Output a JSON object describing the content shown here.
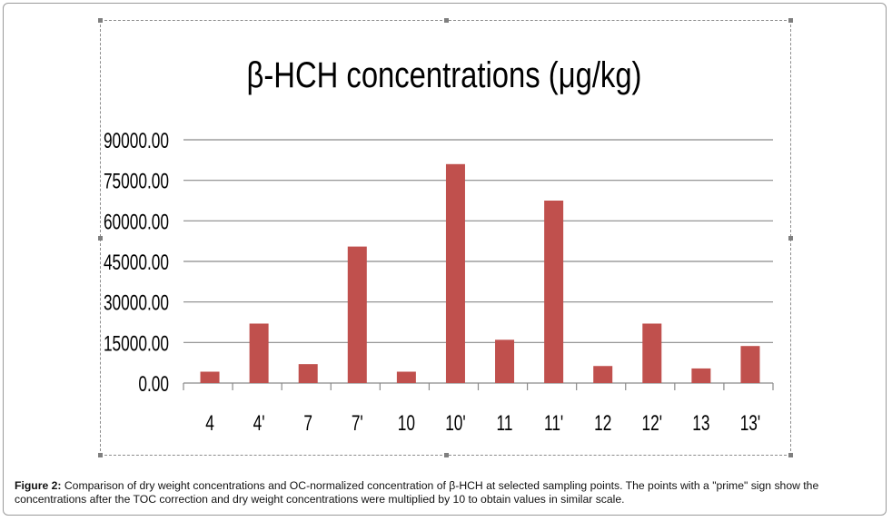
{
  "caption": {
    "label": "Figure 2:",
    "text": "Comparison of dry weight concentrations and OC-normalized concentration of β-HCH at selected sampling points. The points with a \"prime\" sign show the concentrations after the TOC correction and dry weight concentrations were multiplied by 10 to obtain values in similar scale."
  },
  "chart_data": {
    "type": "bar",
    "title": "β-HCH concentrations (μg/kg)",
    "categories": [
      "4",
      "4'",
      "7",
      "7'",
      "10",
      "10'",
      "11",
      "11'",
      "12",
      "12'",
      "13",
      "13'"
    ],
    "values": [
      4200,
      22000,
      7000,
      50500,
      4200,
      81000,
      16000,
      67500,
      6300,
      22000,
      5400,
      13700
    ],
    "yticks": [
      "0.00",
      "15000.00",
      "30000.00",
      "45000.00",
      "60000.00",
      "75000.00",
      "90000.00"
    ],
    "ylim": [
      0,
      90000
    ],
    "bar_color": "#c0504d",
    "grid": true,
    "legend": "none"
  }
}
